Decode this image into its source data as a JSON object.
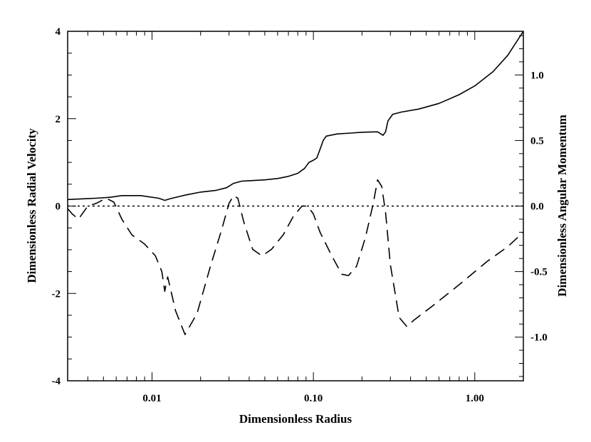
{
  "chart_data": {
    "type": "line",
    "title": "",
    "xlabel": "Dimensionless Radius",
    "ylabel": "Dimensionless Radial Velocity",
    "y2label": "Dimensionless Angular Momentum",
    "xscale": "log",
    "xlim": [
      0.003,
      2.0
    ],
    "ylim": [
      -4,
      4
    ],
    "y2lim": [
      -1.333,
      1.333
    ],
    "grid": false,
    "legend": "none",
    "x_ticks": [
      {
        "value": 0.01,
        "label": "0.01"
      },
      {
        "value": 0.1,
        "label": "0.10"
      },
      {
        "value": 1.0,
        "label": "1.00"
      }
    ],
    "y_ticks": [
      {
        "value": 4,
        "label": "4"
      },
      {
        "value": 2,
        "label": "2"
      },
      {
        "value": 0,
        "label": "0"
      },
      {
        "value": -2,
        "label": "-2"
      },
      {
        "value": -4,
        "label": "-4"
      }
    ],
    "y2_ticks": [
      {
        "value": 1.0,
        "label": "1.0"
      },
      {
        "value": 0.5,
        "label": "0.5"
      },
      {
        "value": 0.0,
        "label": "0.0"
      },
      {
        "value": -0.5,
        "label": "-0.5"
      },
      {
        "value": -1.0,
        "label": "-1.0"
      }
    ],
    "reference_line": {
      "y": 0,
      "style": "dotted"
    },
    "series": [
      {
        "axis": "left",
        "style": "solid",
        "x": [
          0.003,
          0.0045,
          0.0055,
          0.0065,
          0.0085,
          0.011,
          0.012,
          0.013,
          0.016,
          0.02,
          0.025,
          0.029,
          0.032,
          0.036,
          0.04,
          0.05,
          0.06,
          0.07,
          0.08,
          0.088,
          0.094,
          0.1,
          0.105,
          0.11,
          0.115,
          0.12,
          0.14,
          0.17,
          0.2,
          0.25,
          0.27,
          0.28,
          0.29,
          0.31,
          0.35,
          0.45,
          0.6,
          0.8,
          1.0,
          1.3,
          1.6,
          2.0
        ],
        "y": [
          0.15,
          0.18,
          0.2,
          0.24,
          0.24,
          0.18,
          0.13,
          0.17,
          0.25,
          0.32,
          0.36,
          0.42,
          0.52,
          0.57,
          0.58,
          0.6,
          0.63,
          0.68,
          0.75,
          0.86,
          1.0,
          1.05,
          1.1,
          1.3,
          1.5,
          1.6,
          1.65,
          1.67,
          1.69,
          1.7,
          1.62,
          1.7,
          1.95,
          2.1,
          2.15,
          2.22,
          2.35,
          2.55,
          2.75,
          3.08,
          3.45,
          4.0
        ]
      },
      {
        "axis": "right",
        "style": "dashed",
        "x": [
          0.003,
          0.0032,
          0.0035,
          0.004,
          0.0045,
          0.0052,
          0.0058,
          0.0065,
          0.0075,
          0.009,
          0.0105,
          0.0115,
          0.012,
          0.0122,
          0.0125,
          0.014,
          0.016,
          0.019,
          0.023,
          0.027,
          0.03,
          0.032,
          0.034,
          0.037,
          0.042,
          0.048,
          0.055,
          0.065,
          0.075,
          0.085,
          0.092,
          0.1,
          0.11,
          0.13,
          0.15,
          0.165,
          0.185,
          0.21,
          0.235,
          0.25,
          0.265,
          0.28,
          0.3,
          0.34,
          0.38,
          0.42,
          0.55,
          0.8,
          1.2,
          1.6,
          2.0
        ],
        "y": [
          -0.02,
          -0.06,
          -0.1,
          0.0,
          0.02,
          0.06,
          0.03,
          -0.1,
          -0.22,
          -0.29,
          -0.38,
          -0.5,
          -0.65,
          -0.6,
          -0.54,
          -0.8,
          -0.98,
          -0.82,
          -0.46,
          -0.18,
          0.02,
          0.08,
          0.06,
          -0.12,
          -0.33,
          -0.38,
          -0.33,
          -0.22,
          -0.08,
          0.0,
          0.0,
          -0.06,
          -0.2,
          -0.38,
          -0.52,
          -0.53,
          -0.46,
          -0.24,
          0.02,
          0.2,
          0.15,
          -0.05,
          -0.45,
          -0.85,
          -0.92,
          -0.87,
          -0.76,
          -0.6,
          -0.42,
          -0.31,
          -0.2
        ]
      }
    ]
  }
}
